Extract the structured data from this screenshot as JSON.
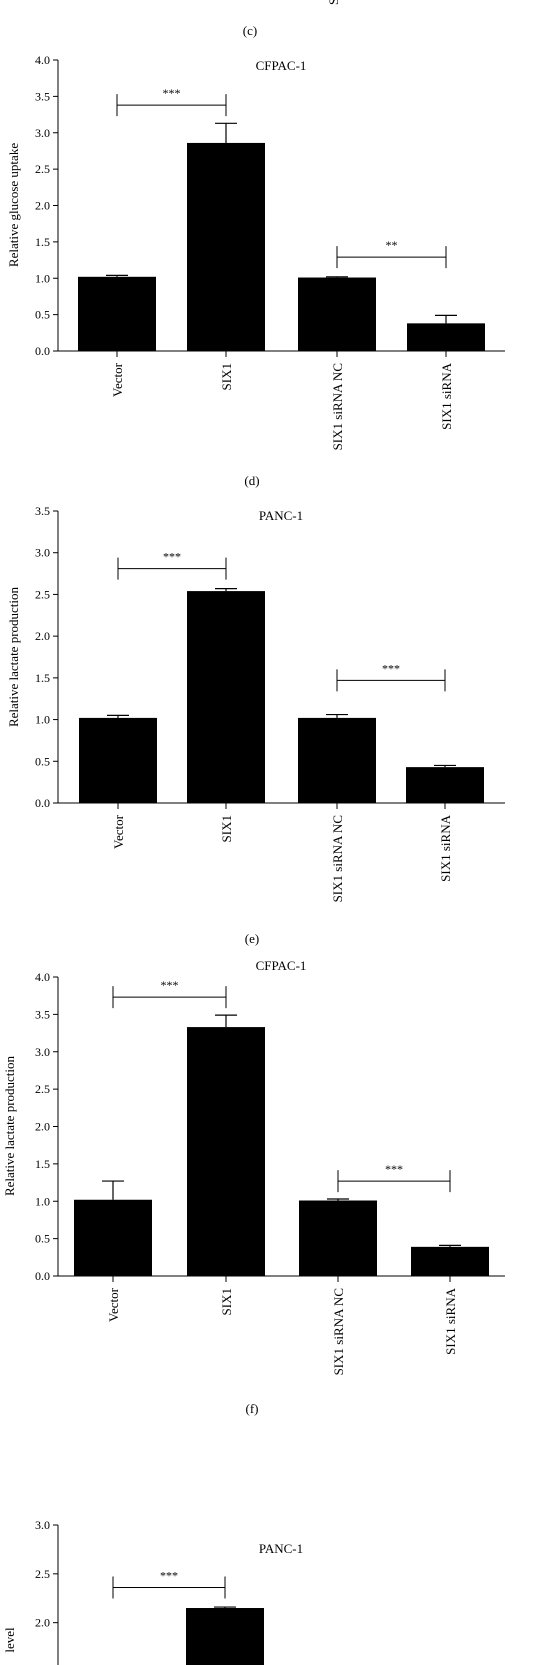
{
  "top_cutoff": {
    "panel_label": "(c)",
    "partial_text": "SI"
  },
  "chart_data": [
    {
      "panel_label": "",
      "type": "bar",
      "title": "CFPAC-1",
      "ylabel": "Relative glucose uptake",
      "categories": [
        "Vector",
        "SIX1",
        "SIX1 siRNA NC",
        "SIX1 siRNA"
      ],
      "values": [
        1.02,
        2.86,
        1.01,
        0.38
      ],
      "errors": [
        0.02,
        0.27,
        0.01,
        0.11
      ],
      "ylim": [
        0,
        4.0
      ],
      "yticks": [
        "0.0",
        "0.5",
        "1.0",
        "1.5",
        "2.0",
        "2.5",
        "3.0",
        "3.5",
        "4.0"
      ],
      "significance": [
        {
          "from": 0,
          "to": 1,
          "y": 3.38,
          "label": "***"
        },
        {
          "from": 2,
          "to": 3,
          "y": 1.29,
          "label": "**"
        }
      ],
      "caption": "(d)"
    },
    {
      "panel_label": "",
      "type": "bar",
      "title": "PANC-1",
      "ylabel": "Relative lactate production",
      "categories": [
        "Vector",
        "SIX1",
        "SIX1 siRNA NC",
        "SIX1 siRNA"
      ],
      "values": [
        1.02,
        2.54,
        1.02,
        0.43
      ],
      "errors": [
        0.03,
        0.03,
        0.04,
        0.02
      ],
      "ylim": [
        0,
        3.5
      ],
      "yticks": [
        "0.0",
        "0.5",
        "1.0",
        "1.5",
        "2.0",
        "2.5",
        "3.0",
        "3.5"
      ],
      "significance": [
        {
          "from": 0,
          "to": 1,
          "y": 2.81,
          "label": "***"
        },
        {
          "from": 2,
          "to": 3,
          "y": 1.47,
          "label": "***"
        }
      ],
      "caption": "(e)"
    },
    {
      "panel_label": "",
      "type": "bar",
      "title": "CFPAC-1",
      "ylabel": "Relative lactate production",
      "categories": [
        "Vector",
        "SIX1",
        "SIX1 siRNA NC",
        "SIX1 siRNA"
      ],
      "values": [
        1.02,
        3.33,
        1.01,
        0.39
      ],
      "errors": [
        0.25,
        0.16,
        0.02,
        0.02
      ],
      "ylim": [
        0,
        4.0
      ],
      "yticks": [
        "0.0",
        "0.5",
        "1.0",
        "1.5",
        "2.0",
        "2.5",
        "3.0",
        "3.5",
        "4.0"
      ],
      "significance": [
        {
          "from": 0,
          "to": 1,
          "y": 3.73,
          "label": "***"
        },
        {
          "from": 2,
          "to": 3,
          "y": 1.27,
          "label": "***"
        }
      ],
      "caption": "(f)"
    },
    {
      "panel_label": "",
      "type": "bar",
      "title": "PANC-1",
      "ylabel": "level",
      "categories": [
        "",
        "SIX1"
      ],
      "values": [
        null,
        2.15
      ],
      "errors": [
        null,
        0.01
      ],
      "ylim": [
        0,
        3.0
      ],
      "yticks": [
        "2.0",
        "2.5",
        "3.0"
      ],
      "significance": [
        {
          "from": 0,
          "to": 1,
          "y": 2.36,
          "label": "***"
        }
      ],
      "caption": ""
    }
  ]
}
